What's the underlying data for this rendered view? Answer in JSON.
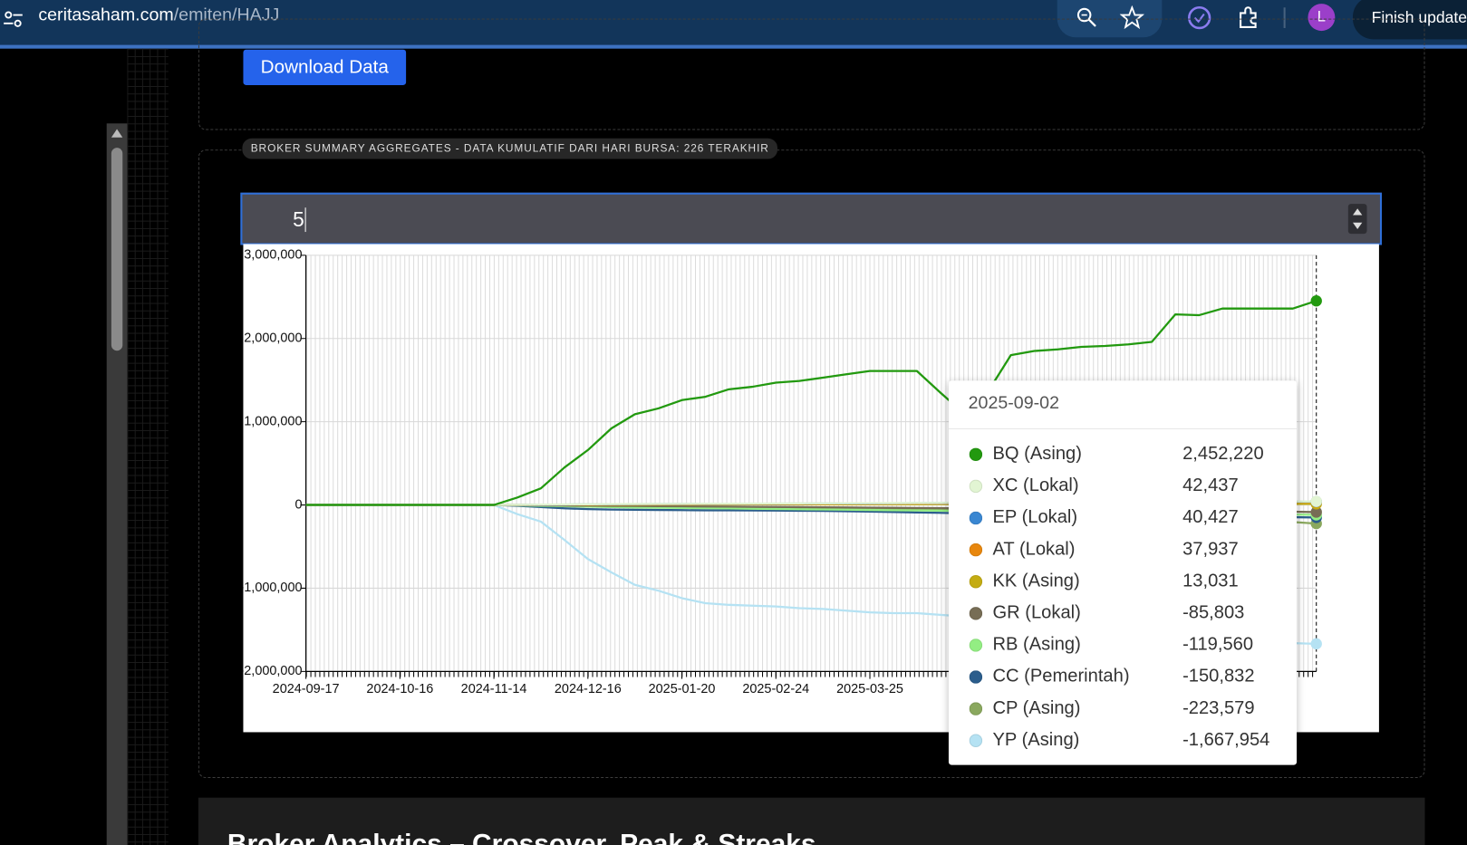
{
  "browser": {
    "domain": "ceritasaham.com",
    "path": "/emiten/HAJJ",
    "update_button": "Finish update",
    "profile": "L"
  },
  "page": {
    "download_button": "Download Data",
    "section_legend": "BROKER SUMMARY AGGREGATES - DATA KUMULATIF DARI HARI BURSA: 226 TERAKHIR",
    "input_value": "5",
    "next_section_title": "Broker Analytics – Crossover, Peak & Streaks"
  },
  "chart_data": {
    "type": "line",
    "categories": [
      "2024-09-17",
      null,
      null,
      null,
      "2024-10-16",
      null,
      null,
      null,
      "2024-11-14",
      null,
      null,
      null,
      "2024-12-16",
      null,
      null,
      null,
      "2025-01-20",
      null,
      null,
      null,
      "2025-02-24",
      null,
      null,
      null,
      "2025-03-25",
      null,
      null,
      null,
      null,
      null,
      null,
      null,
      null,
      null,
      null,
      null,
      null,
      null,
      null,
      null,
      null,
      null,
      null,
      null
    ],
    "ylim": [
      -2000000,
      3000000
    ],
    "yticks": [
      {
        "value": -2000000,
        "label": "-2,000,000"
      },
      {
        "value": -1000000,
        "label": "-1,000,000"
      },
      0,
      {
        "value": 1000000,
        "label": "1,000,000"
      },
      {
        "value": 2000000,
        "label": "2,000,000"
      },
      {
        "value": 3000000,
        "label": "3,000,000"
      }
    ],
    "grid": true,
    "series": [
      {
        "name": "BQ (Asing)",
        "color": "#22990f",
        "values": [
          0,
          0,
          0,
          0,
          0,
          0,
          0,
          0,
          0,
          90000,
          200000,
          450000,
          660000,
          920000,
          1090000,
          1160000,
          1260000,
          1300000,
          1390000,
          1420000,
          1470000,
          1490000,
          1530000,
          1570000,
          1610000,
          1610000,
          1610000,
          1350000,
          1100000,
          1350000,
          1800000,
          1850000,
          1870000,
          1900000,
          1910000,
          1930000,
          1960000,
          2290000,
          2280000,
          2360000,
          2360000,
          2360000,
          2360000,
          2452220
        ]
      },
      {
        "name": "XC (Lokal)",
        "color": "#e2f5d3",
        "values": [
          0,
          0,
          0,
          0,
          0,
          0,
          0,
          0,
          0,
          2000,
          4000,
          6000,
          8000,
          10000,
          12000,
          13000,
          14000,
          15000,
          16000,
          17000,
          18000,
          19000,
          20000,
          21000,
          22000,
          23000,
          24000,
          25000,
          26000,
          27000,
          28000,
          29000,
          30000,
          31000,
          32000,
          33000,
          34000,
          35000,
          36000,
          37000,
          38000,
          40000,
          41000,
          42437
        ]
      },
      {
        "name": "EP (Lokal)",
        "color": "#3a87d2",
        "values": [
          0,
          0,
          0,
          0,
          0,
          0,
          0,
          0,
          0,
          1000,
          3000,
          5000,
          7000,
          9000,
          10000,
          11000,
          12000,
          13000,
          14000,
          15000,
          16000,
          17000,
          18000,
          19000,
          20000,
          21000,
          22000,
          23000,
          24000,
          25000,
          26000,
          27000,
          28000,
          29000,
          30000,
          31000,
          32000,
          33000,
          34000,
          35000,
          36000,
          38000,
          39000,
          40427
        ]
      },
      {
        "name": "AT (Lokal)",
        "color": "#e8870e",
        "values": [
          0,
          0,
          0,
          0,
          0,
          0,
          0,
          0,
          0,
          1000,
          2000,
          3000,
          4000,
          5000,
          6000,
          7000,
          8000,
          9000,
          10000,
          11000,
          12000,
          13000,
          14000,
          15000,
          16000,
          17000,
          18000,
          19000,
          20000,
          21000,
          22000,
          23000,
          24000,
          25000,
          26000,
          27000,
          28000,
          29000,
          30000,
          31000,
          33000,
          35000,
          36000,
          37937
        ]
      },
      {
        "name": "KK (Asing)",
        "color": "#c4ac12",
        "values": [
          0,
          0,
          0,
          0,
          0,
          0,
          0,
          0,
          0,
          1000,
          2000,
          3000,
          3000,
          4000,
          4000,
          5000,
          5000,
          6000,
          6000,
          7000,
          7000,
          8000,
          8000,
          8000,
          9000,
          9000,
          9000,
          10000,
          10000,
          10000,
          11000,
          11000,
          11000,
          11000,
          12000,
          12000,
          12000,
          12000,
          12000,
          13000,
          13000,
          13000,
          13000,
          13031
        ]
      },
      {
        "name": "GR (Lokal)",
        "color": "#776d55",
        "values": [
          0,
          0,
          0,
          0,
          0,
          0,
          0,
          0,
          0,
          -2000,
          -4000,
          -6000,
          -8000,
          -10000,
          -12000,
          -14000,
          -16000,
          -18000,
          -20000,
          -22000,
          -24000,
          -26000,
          -28000,
          -30000,
          -32000,
          -34000,
          -36000,
          -38000,
          -40000,
          -42000,
          -44000,
          -46000,
          -48000,
          -50000,
          -53000,
          -56000,
          -59000,
          -62000,
          -65000,
          -68000,
          -72000,
          -76000,
          -81000,
          -85803
        ]
      },
      {
        "name": "RB (Asing)",
        "color": "#93ee83",
        "values": [
          0,
          0,
          0,
          0,
          0,
          0,
          0,
          0,
          0,
          -5000,
          -10000,
          -15000,
          -20000,
          -25000,
          -30000,
          -33000,
          -36000,
          -39000,
          -42000,
          -45000,
          -48000,
          -51000,
          -54000,
          -57000,
          -60000,
          -63000,
          -66000,
          -69000,
          -72000,
          -75000,
          -78000,
          -81000,
          -84000,
          -87000,
          -90000,
          -93000,
          -96000,
          -99000,
          -102000,
          -105000,
          -108000,
          -111000,
          -115000,
          -119560
        ]
      },
      {
        "name": "CC (Pemerintah)",
        "color": "#2b5d8c",
        "values": [
          0,
          0,
          0,
          0,
          0,
          0,
          0,
          0,
          0,
          -10000,
          -25000,
          -40000,
          -50000,
          -55000,
          -58000,
          -60000,
          -62000,
          -64000,
          -65000,
          -66000,
          -68000,
          -70000,
          -72000,
          -75000,
          -80000,
          -85000,
          -90000,
          -95000,
          -100000,
          -104000,
          -108000,
          -112000,
          -115000,
          -118000,
          -121000,
          -124000,
          -127000,
          -130000,
          -133000,
          -136000,
          -139000,
          -143000,
          -147000,
          -150832
        ]
      },
      {
        "name": "CP (Asing)",
        "color": "#8aa85e",
        "values": [
          0,
          0,
          0,
          0,
          0,
          0,
          0,
          0,
          0,
          -3000,
          -6000,
          -9000,
          -12000,
          -15000,
          -18000,
          -21000,
          -24000,
          -27000,
          -30000,
          -33000,
          -36000,
          -39000,
          -42000,
          -45000,
          -48000,
          -51000,
          -54000,
          -57000,
          -60000,
          -63000,
          -66000,
          -70000,
          -75000,
          -80000,
          -90000,
          -100000,
          -115000,
          -130000,
          -145000,
          -160000,
          -175000,
          -190000,
          -205000,
          -223579
        ]
      },
      {
        "name": "YP (Asing)",
        "color": "#b5e2f3",
        "values": [
          0,
          0,
          0,
          0,
          0,
          0,
          0,
          0,
          0,
          -110000,
          -200000,
          -420000,
          -650000,
          -810000,
          -960000,
          -1030000,
          -1120000,
          -1180000,
          -1200000,
          -1210000,
          -1220000,
          -1240000,
          -1250000,
          -1270000,
          -1290000,
          -1300000,
          -1300000,
          -1320000,
          -1340000,
          -1360000,
          -1380000,
          -1400000,
          -1420000,
          -1440000,
          -1460000,
          -1480000,
          -1500000,
          -1520000,
          -1540000,
          -1570000,
          -1600000,
          -1630000,
          -1660000,
          -1667954
        ]
      }
    ],
    "tooltip": {
      "title": "2025-09-02",
      "value_labels": [
        "2,452,220",
        "42,437",
        "40,427",
        "37,937",
        "13,031",
        "-85,803",
        "-119,560",
        "-150,832",
        "-223,579",
        "-1,667,954"
      ]
    }
  }
}
